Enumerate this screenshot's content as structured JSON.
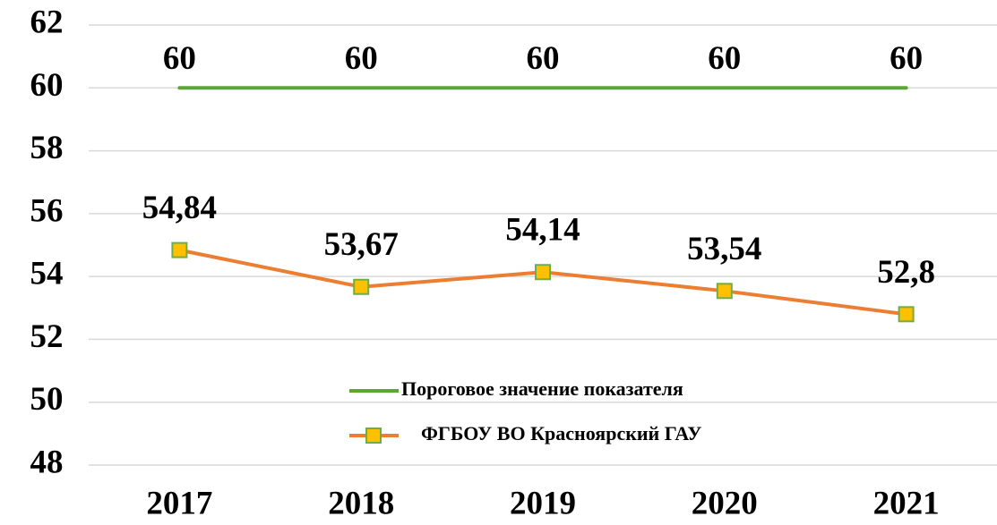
{
  "chart_data": {
    "type": "line",
    "categories": [
      "2017",
      "2018",
      "2019",
      "2020",
      "2021"
    ],
    "series": [
      {
        "name": "Пороговое значение показателя",
        "color": "#5ea633",
        "values": [
          60,
          60,
          60,
          60,
          60
        ]
      },
      {
        "name": "ФГБОУ ВО Красноярский ГАУ",
        "color": "#ed7d31",
        "marker": "square",
        "marker_color": "#ffc000",
        "marker_edge": "#70ad47",
        "values": [
          54.84,
          53.67,
          54.14,
          53.54,
          52.8
        ],
        "value_labels": [
          "54,84",
          "53,67",
          "54,14",
          "53,54",
          "52,8"
        ]
      }
    ],
    "ylim": [
      48,
      62
    ],
    "yticks": [
      48,
      50,
      52,
      54,
      56,
      58,
      60,
      62
    ],
    "grid": true
  }
}
